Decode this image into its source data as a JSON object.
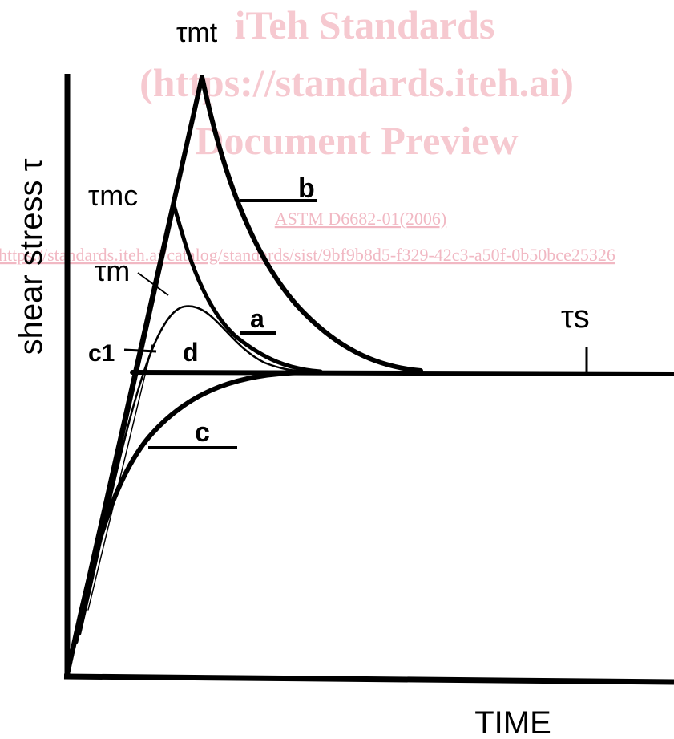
{
  "watermark": {
    "line1": "iTeh Standards",
    "line2": "(https://standards.iteh.ai)",
    "line3": "Document Preview",
    "link1": "ASTM D6682-01(2006)",
    "link2": "https://standards.iteh.ai/catalog/standards/sist/9bf9b8d5-f329-42c3-a50f-0b50bce25326"
  },
  "chart_data": {
    "type": "line",
    "xlabel": "TIME",
    "ylabel": "shear stress τ",
    "labels": {
      "tau_mt": "τmt",
      "tau_mc": "τmc",
      "tau_m": "τm",
      "tau_s": "τs",
      "curve_a": "a",
      "curve_b": "b",
      "curve_c": "c",
      "curve_c1": "c1",
      "curve_d": "d"
    },
    "series": [
      {
        "name": "b",
        "peak": "τmt",
        "description_values": {
          "x": [
            0,
            0.22,
            0.55,
            1.0
          ],
          "y": [
            0,
            1.0,
            0.48,
            0.48
          ]
        }
      },
      {
        "name": "a",
        "peak": "τmc",
        "description_values": {
          "x": [
            0,
            0.17,
            0.38,
            1.0
          ],
          "y": [
            0,
            0.78,
            0.48,
            0.48
          ]
        }
      },
      {
        "name": "d",
        "peak": "τm",
        "description_values": {
          "x": [
            0,
            0.19,
            0.36,
            1.0
          ],
          "y": [
            0,
            0.6,
            0.48,
            0.48
          ]
        }
      },
      {
        "name": "c",
        "description_values": {
          "x": [
            0,
            0.2,
            0.45,
            1.0
          ],
          "y": [
            0,
            0.33,
            0.48,
            0.48
          ]
        }
      },
      {
        "name": "c1",
        "description_values": {
          "x": [
            0.11,
            1.0
          ],
          "y": [
            0.48,
            0.48
          ]
        }
      }
    ],
    "steady_state_label": "τs",
    "grid": false
  }
}
